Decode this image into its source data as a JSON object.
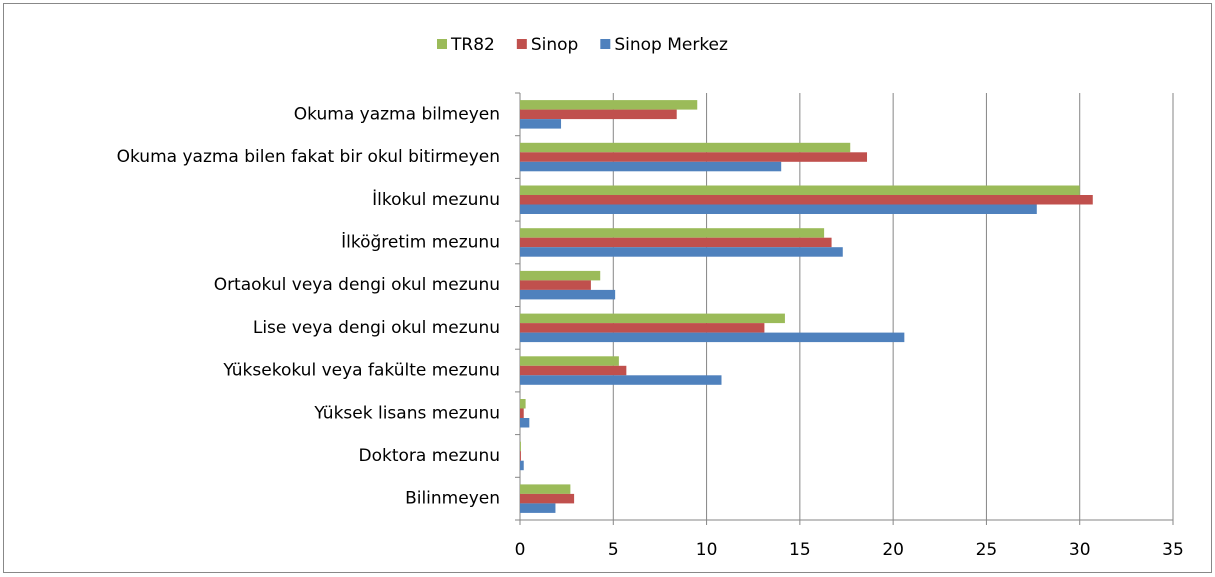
{
  "chart_data": {
    "type": "hbar",
    "categories": [
      "Okuma yazma bilmeyen",
      "Okuma yazma bilen fakat bir okul bitirmeyen",
      "İlkokul mezunu",
      "İlköğretim mezunu",
      "Ortaokul veya dengi okul mezunu",
      "Lise veya dengi okul mezunu",
      "Yüksekokul veya fakülte mezunu",
      "Yüksek lisans mezunu",
      "Doktora mezunu",
      "Bilinmeyen"
    ],
    "series": [
      {
        "name": "TR82",
        "color": "#9bbb59",
        "values": [
          9.5,
          17.7,
          30.0,
          16.3,
          4.3,
          14.2,
          5.3,
          0.3,
          0.05,
          2.7
        ]
      },
      {
        "name": "Sinop",
        "color": "#c0504d",
        "values": [
          8.4,
          18.6,
          30.7,
          16.7,
          3.8,
          13.1,
          5.7,
          0.2,
          0.05,
          2.9
        ]
      },
      {
        "name": "Sinop Merkez",
        "color": "#4f81bd",
        "values": [
          2.2,
          14.0,
          27.7,
          17.3,
          5.1,
          20.6,
          10.8,
          0.5,
          0.2,
          1.9
        ]
      }
    ],
    "xlim": [
      0,
      35
    ],
    "xticks": [
      0,
      5,
      10,
      15,
      20,
      25,
      30,
      35
    ],
    "grid": true,
    "legend": "top"
  }
}
